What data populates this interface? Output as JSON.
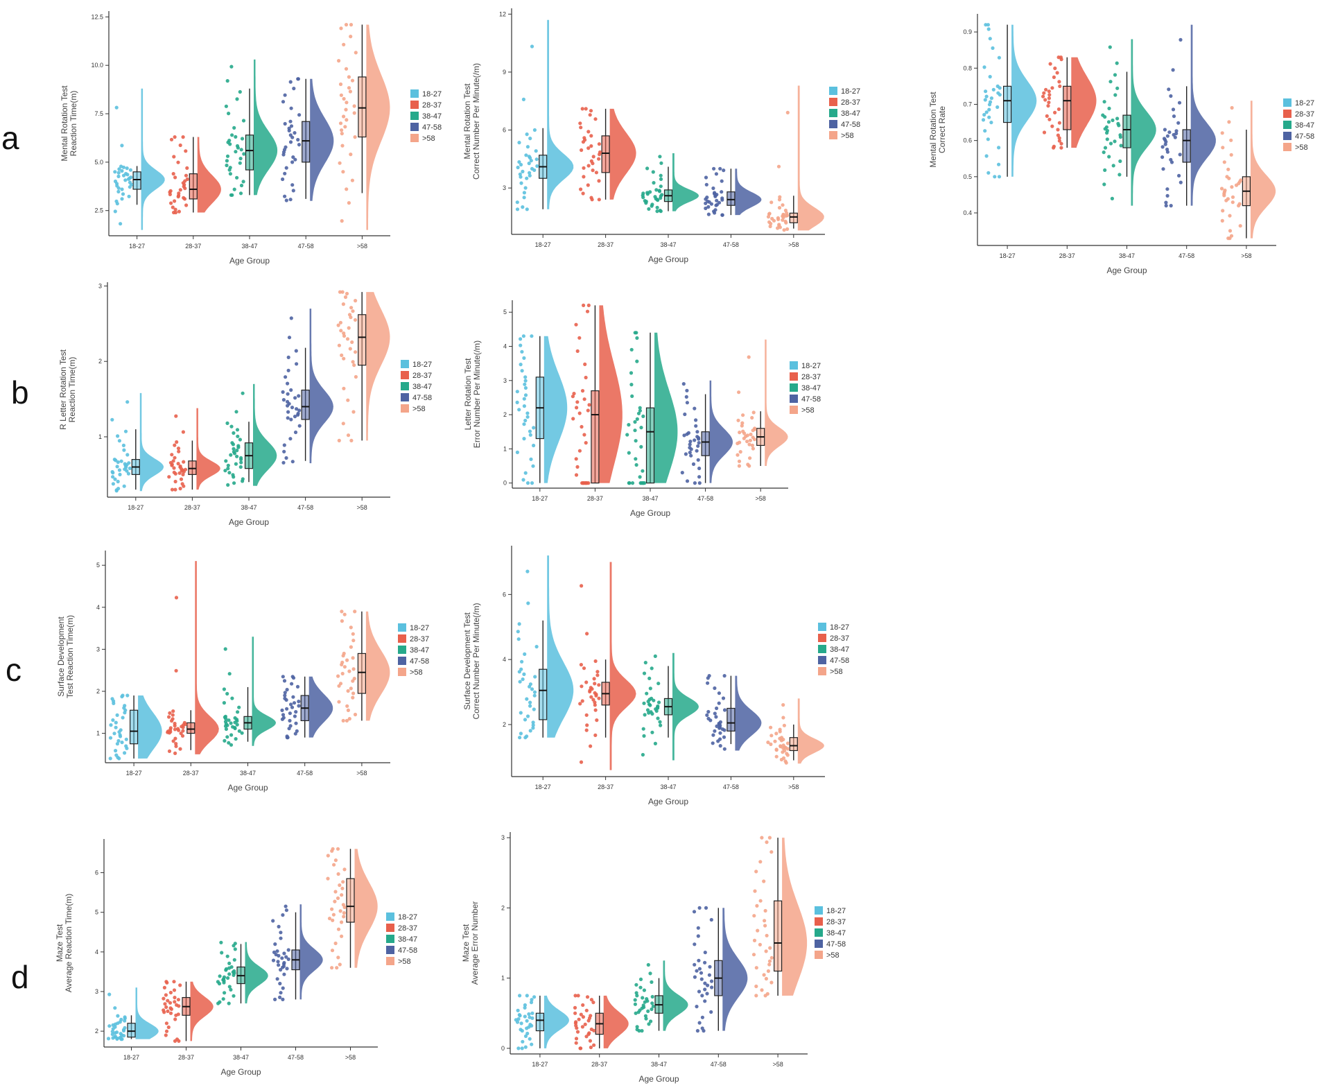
{
  "row_labels": [
    "a",
    "b",
    "c",
    "d"
  ],
  "chart_data": [
    {
      "id": "a1",
      "type": "raincloud",
      "row": "a",
      "categories": [
        "18-27",
        "28-37",
        "38-47",
        "47-58",
        ">58"
      ],
      "colors": [
        "#5bc0de",
        "#e8604c",
        "#26a98b",
        "#4e63a2",
        "#f4a58a"
      ],
      "ylabel_lines": [
        "Mental Rotation Test",
        "Reaction Time(m)"
      ],
      "xlabel": "Age Group",
      "ylim": [
        1.2,
        12.8
      ],
      "yticks": [
        2.5,
        5.0,
        7.5,
        10.0,
        12.5
      ],
      "ytick_labels": [
        "2.5",
        "5.0",
        "7.5",
        "10.0",
        "12.5"
      ],
      "series": [
        {
          "name": "18-27",
          "median": 4.1,
          "q1": 3.6,
          "q3": 4.5,
          "whisker_low": 2.8,
          "whisker_high": 4.8,
          "min": 1.5,
          "max": 8.8
        },
        {
          "name": "28-37",
          "median": 3.6,
          "q1": 3.1,
          "q3": 4.4,
          "whisker_low": 2.4,
          "whisker_high": 6.3,
          "min": 2.4,
          "max": 6.3
        },
        {
          "name": "38-47",
          "median": 5.6,
          "q1": 4.6,
          "q3": 6.4,
          "whisker_low": 3.3,
          "whisker_high": 8.8,
          "min": 3.3,
          "max": 10.3
        },
        {
          "name": "47-58",
          "median": 6.1,
          "q1": 5.0,
          "q3": 7.1,
          "whisker_low": 3.1,
          "whisker_high": 9.3,
          "min": 3.0,
          "max": 9.3
        },
        {
          "name": ">58",
          "median": 7.8,
          "q1": 6.3,
          "q3": 9.4,
          "whisker_low": 3.4,
          "whisker_high": 12.1,
          "min": 1.5,
          "max": 12.1
        }
      ]
    },
    {
      "id": "a2",
      "type": "raincloud",
      "row": "a",
      "categories": [
        "18-27",
        "28-37",
        "38-47",
        "47-58",
        ">58"
      ],
      "colors": [
        "#5bc0de",
        "#e8604c",
        "#26a98b",
        "#4e63a2",
        "#f4a58a"
      ],
      "ylabel_lines": [
        "Mental Rotation Test",
        "Correct Number Per Minute(/m)"
      ],
      "xlabel": "Age Group",
      "ylim": [
        0.6,
        12.3
      ],
      "yticks": [
        3,
        6,
        9,
        12
      ],
      "ytick_labels": [
        "3",
        "6",
        "9",
        "12"
      ],
      "series": [
        {
          "name": "18-27",
          "median": 4.1,
          "q1": 3.5,
          "q3": 4.7,
          "whisker_low": 1.9,
          "whisker_high": 6.1,
          "min": 1.9,
          "max": 11.7
        },
        {
          "name": "28-37",
          "median": 4.8,
          "q1": 3.8,
          "q3": 5.7,
          "whisker_low": 2.4,
          "whisker_high": 7.1,
          "min": 2.4,
          "max": 7.1
        },
        {
          "name": "38-47",
          "median": 2.6,
          "q1": 2.3,
          "q3": 2.9,
          "whisker_low": 1.8,
          "whisker_high": 4.1,
          "min": 1.8,
          "max": 4.8
        },
        {
          "name": "47-58",
          "median": 2.4,
          "q1": 2.1,
          "q3": 2.8,
          "whisker_low": 1.6,
          "whisker_high": 4.0,
          "min": 1.6,
          "max": 4.0
        },
        {
          "name": ">58",
          "median": 1.5,
          "q1": 1.2,
          "q3": 1.7,
          "whisker_low": 0.9,
          "whisker_high": 2.6,
          "min": 0.8,
          "max": 8.3
        }
      ]
    },
    {
      "id": "a3",
      "type": "raincloud",
      "row": "a",
      "categories": [
        "18-27",
        "28-37",
        "38-47",
        "47-58",
        ">58"
      ],
      "colors": [
        "#5bc0de",
        "#e8604c",
        "#26a98b",
        "#4e63a2",
        "#f4a58a"
      ],
      "ylabel_lines": [
        "Mental Rotation Test",
        "Correct Rate"
      ],
      "xlabel": "Age Group",
      "ylim": [
        0.31,
        0.95
      ],
      "yticks": [
        0.4,
        0.5,
        0.6,
        0.7,
        0.8,
        0.9
      ],
      "ytick_labels": [
        "0.4",
        "0.5",
        "0.6",
        "0.7",
        "0.8",
        "0.9"
      ],
      "series": [
        {
          "name": "18-27",
          "median": 0.71,
          "q1": 0.65,
          "q3": 0.75,
          "whisker_low": 0.5,
          "whisker_high": 0.92,
          "min": 0.5,
          "max": 0.92
        },
        {
          "name": "28-37",
          "median": 0.71,
          "q1": 0.63,
          "q3": 0.75,
          "whisker_low": 0.58,
          "whisker_high": 0.83,
          "min": 0.58,
          "max": 0.83
        },
        {
          "name": "38-47",
          "median": 0.63,
          "q1": 0.58,
          "q3": 0.67,
          "whisker_low": 0.5,
          "whisker_high": 0.79,
          "min": 0.42,
          "max": 0.88
        },
        {
          "name": "47-58",
          "median": 0.6,
          "q1": 0.54,
          "q3": 0.63,
          "whisker_low": 0.42,
          "whisker_high": 0.75,
          "min": 0.42,
          "max": 0.92
        },
        {
          "name": ">58",
          "median": 0.46,
          "q1": 0.42,
          "q3": 0.5,
          "whisker_low": 0.33,
          "whisker_high": 0.63,
          "min": 0.33,
          "max": 0.71
        }
      ]
    },
    {
      "id": "b1",
      "type": "raincloud",
      "row": "b",
      "categories": [
        "18-27",
        "28-37",
        "38-47",
        "47-58",
        ">58"
      ],
      "colors": [
        "#5bc0de",
        "#e8604c",
        "#26a98b",
        "#4e63a2",
        "#f4a58a"
      ],
      "ylabel_lines": [
        "R Letter Rotation Test",
        "Reaction Time(m)"
      ],
      "xlabel": "Age Group",
      "ylim": [
        0.2,
        3.05
      ],
      "yticks": [
        1,
        2,
        3
      ],
      "ytick_labels": [
        "1",
        "2",
        "3"
      ],
      "series": [
        {
          "name": "18-27",
          "median": 0.6,
          "q1": 0.5,
          "q3": 0.7,
          "whisker_low": 0.3,
          "whisker_high": 1.1,
          "min": 0.28,
          "max": 1.58
        },
        {
          "name": "28-37",
          "median": 0.58,
          "q1": 0.5,
          "q3": 0.68,
          "whisker_low": 0.3,
          "whisker_high": 0.95,
          "min": 0.3,
          "max": 1.38
        },
        {
          "name": "38-47",
          "median": 0.75,
          "q1": 0.58,
          "q3": 0.92,
          "whisker_low": 0.4,
          "whisker_high": 1.2,
          "min": 0.35,
          "max": 1.7
        },
        {
          "name": "47-58",
          "median": 1.4,
          "q1": 1.23,
          "q3": 1.62,
          "whisker_low": 0.68,
          "whisker_high": 2.18,
          "min": 0.65,
          "max": 2.7
        },
        {
          "name": ">58",
          "median": 2.32,
          "q1": 1.95,
          "q3": 2.62,
          "whisker_low": 0.95,
          "whisker_high": 2.92,
          "min": 0.95,
          "max": 2.92
        }
      ]
    },
    {
      "id": "b2",
      "type": "raincloud",
      "row": "b",
      "categories": [
        "18-27",
        "28-37",
        "38-47",
        "47-58",
        ">58"
      ],
      "colors": [
        "#5bc0de",
        "#e8604c",
        "#26a98b",
        "#4e63a2",
        "#f4a58a"
      ],
      "ylabel_lines": [
        "Letter Rotation Test",
        "Error Number Per Minute(/m)"
      ],
      "xlabel": "Age Group",
      "ylim": [
        -0.15,
        5.35
      ],
      "yticks": [
        0,
        1,
        2,
        3,
        4,
        5
      ],
      "ytick_labels": [
        "0",
        "1",
        "2",
        "3",
        "4",
        "5"
      ],
      "series": [
        {
          "name": "18-27",
          "median": 2.2,
          "q1": 1.3,
          "q3": 3.1,
          "whisker_low": 0.0,
          "whisker_high": 4.3,
          "min": 0.0,
          "max": 4.3
        },
        {
          "name": "28-37",
          "median": 2.0,
          "q1": 0.0,
          "q3": 2.7,
          "whisker_low": 0.0,
          "whisker_high": 5.2,
          "min": 0.0,
          "max": 5.2
        },
        {
          "name": "38-47",
          "median": 1.5,
          "q1": 0.0,
          "q3": 2.2,
          "whisker_low": 0.0,
          "whisker_high": 4.4,
          "min": 0.0,
          "max": 4.4
        },
        {
          "name": "47-58",
          "median": 1.2,
          "q1": 0.8,
          "q3": 1.5,
          "whisker_low": 0.0,
          "whisker_high": 2.6,
          "min": 0.0,
          "max": 3.0
        },
        {
          "name": ">58",
          "median": 1.35,
          "q1": 1.1,
          "q3": 1.6,
          "whisker_low": 0.5,
          "whisker_high": 2.1,
          "min": 0.5,
          "max": 4.2
        }
      ]
    },
    {
      "id": "c1",
      "type": "raincloud",
      "row": "c",
      "categories": [
        "18-27",
        "28-37",
        "38-47",
        "47-58",
        ">58"
      ],
      "colors": [
        "#5bc0de",
        "#e8604c",
        "#26a98b",
        "#4e63a2",
        "#f4a58a"
      ],
      "ylabel_lines": [
        "Surface Development",
        "Test Reaction Time(m)"
      ],
      "xlabel": "Age Group",
      "ylim": [
        0.3,
        5.35
      ],
      "yticks": [
        1,
        2,
        3,
        4,
        5
      ],
      "ytick_labels": [
        "1",
        "2",
        "3",
        "4",
        "5"
      ],
      "series": [
        {
          "name": "18-27",
          "median": 1.05,
          "q1": 0.75,
          "q3": 1.55,
          "whisker_low": 0.4,
          "whisker_high": 1.9,
          "min": 0.4,
          "max": 1.9
        },
        {
          "name": "28-37",
          "median": 1.1,
          "q1": 1.0,
          "q3": 1.25,
          "whisker_low": 0.6,
          "whisker_high": 1.55,
          "min": 0.5,
          "max": 5.1
        },
        {
          "name": "38-47",
          "median": 1.25,
          "q1": 1.1,
          "q3": 1.4,
          "whisker_low": 0.8,
          "whisker_high": 2.1,
          "min": 0.7,
          "max": 3.3
        },
        {
          "name": "47-58",
          "median": 1.6,
          "q1": 1.3,
          "q3": 1.9,
          "whisker_low": 0.9,
          "whisker_high": 2.35,
          "min": 0.9,
          "max": 2.35
        },
        {
          "name": ">58",
          "median": 2.45,
          "q1": 1.95,
          "q3": 2.9,
          "whisker_low": 1.3,
          "whisker_high": 3.9,
          "min": 1.3,
          "max": 3.9
        }
      ]
    },
    {
      "id": "c2",
      "type": "raincloud",
      "row": "c",
      "categories": [
        "18-27",
        "28-37",
        "38-47",
        "47-58",
        ">58"
      ],
      "colors": [
        "#5bc0de",
        "#e8604c",
        "#26a98b",
        "#4e63a2",
        "#f4a58a"
      ],
      "ylabel_lines": [
        "Surface Development Test",
        "Correct Number Per Minute(/m)"
      ],
      "xlabel": "Age Group",
      "ylim": [
        0.4,
        7.5
      ],
      "yticks": [
        2,
        4,
        6
      ],
      "ytick_labels": [
        "2",
        "4",
        "6"
      ],
      "series": [
        {
          "name": "18-27",
          "median": 3.05,
          "q1": 2.15,
          "q3": 3.7,
          "whisker_low": 1.6,
          "whisker_high": 5.2,
          "min": 1.6,
          "max": 7.2
        },
        {
          "name": "28-37",
          "median": 2.95,
          "q1": 2.6,
          "q3": 3.3,
          "whisker_low": 1.6,
          "whisker_high": 4.0,
          "min": 0.6,
          "max": 7.0
        },
        {
          "name": "38-47",
          "median": 2.55,
          "q1": 2.3,
          "q3": 2.8,
          "whisker_low": 1.6,
          "whisker_high": 3.8,
          "min": 0.9,
          "max": 4.2
        },
        {
          "name": "47-58",
          "median": 2.05,
          "q1": 1.8,
          "q3": 2.5,
          "whisker_low": 1.4,
          "whisker_high": 3.5,
          "min": 1.2,
          "max": 3.5
        },
        {
          "name": ">58",
          "median": 1.35,
          "q1": 1.2,
          "q3": 1.6,
          "whisker_low": 0.9,
          "whisker_high": 2.0,
          "min": 0.8,
          "max": 2.8
        }
      ]
    },
    {
      "id": "d1",
      "type": "raincloud",
      "row": "d",
      "categories": [
        "18-27",
        "28-37",
        "38-47",
        "47-58",
        ">58"
      ],
      "colors": [
        "#5bc0de",
        "#e8604c",
        "#26a98b",
        "#4e63a2",
        "#f4a58a"
      ],
      "ylabel_lines": [
        "Maze Test",
        "Average Reaction Time(m)"
      ],
      "xlabel": "Age Group",
      "ylim": [
        1.6,
        6.85
      ],
      "yticks": [
        2,
        3,
        4,
        5,
        6
      ],
      "ytick_labels": [
        "2",
        "3",
        "4",
        "5",
        "6"
      ],
      "series": [
        {
          "name": "18-27",
          "median": 2.0,
          "q1": 1.85,
          "q3": 2.2,
          "whisker_low": 1.8,
          "whisker_high": 2.4,
          "min": 1.8,
          "max": 3.1
        },
        {
          "name": "28-37",
          "median": 2.62,
          "q1": 2.4,
          "q3": 2.85,
          "whisker_low": 1.75,
          "whisker_high": 3.25,
          "min": 1.75,
          "max": 3.25
        },
        {
          "name": "38-47",
          "median": 3.4,
          "q1": 3.2,
          "q3": 3.62,
          "whisker_low": 2.7,
          "whisker_high": 4.2,
          "min": 2.7,
          "max": 4.25
        },
        {
          "name": "47-58",
          "median": 3.8,
          "q1": 3.55,
          "q3": 4.05,
          "whisker_low": 2.8,
          "whisker_high": 5.0,
          "min": 2.8,
          "max": 5.2
        },
        {
          "name": ">58",
          "median": 5.15,
          "q1": 4.75,
          "q3": 5.85,
          "whisker_low": 3.6,
          "whisker_high": 6.6,
          "min": 3.6,
          "max": 6.6
        }
      ]
    },
    {
      "id": "d2",
      "type": "raincloud",
      "row": "d",
      "categories": [
        "18-27",
        "28-37",
        "38-47",
        "47-58",
        ">58"
      ],
      "colors": [
        "#5bc0de",
        "#e8604c",
        "#26a98b",
        "#4e63a2",
        "#f4a58a"
      ],
      "ylabel_lines": [
        "Maze Test",
        "Average  Error Number"
      ],
      "xlabel": "Age Group",
      "ylim": [
        -0.08,
        3.08
      ],
      "yticks": [
        0,
        1,
        2,
        3
      ],
      "ytick_labels": [
        "0",
        "1",
        "2",
        "3"
      ],
      "series": [
        {
          "name": "18-27",
          "median": 0.4,
          "q1": 0.25,
          "q3": 0.5,
          "whisker_low": 0.0,
          "whisker_high": 0.75,
          "min": 0.0,
          "max": 0.75
        },
        {
          "name": "28-37",
          "median": 0.35,
          "q1": 0.2,
          "q3": 0.5,
          "whisker_low": 0.0,
          "whisker_high": 0.75,
          "min": 0.0,
          "max": 0.75
        },
        {
          "name": "38-47",
          "median": 0.62,
          "q1": 0.5,
          "q3": 0.75,
          "whisker_low": 0.25,
          "whisker_high": 1.0,
          "min": 0.25,
          "max": 1.25
        },
        {
          "name": "47-58",
          "median": 1.0,
          "q1": 0.75,
          "q3": 1.25,
          "whisker_low": 0.25,
          "whisker_high": 2.0,
          "min": 0.25,
          "max": 2.0
        },
        {
          "name": ">58",
          "median": 1.5,
          "q1": 1.1,
          "q3": 2.1,
          "whisker_low": 0.75,
          "whisker_high": 3.0,
          "min": 0.75,
          "max": 3.0
        }
      ]
    }
  ]
}
